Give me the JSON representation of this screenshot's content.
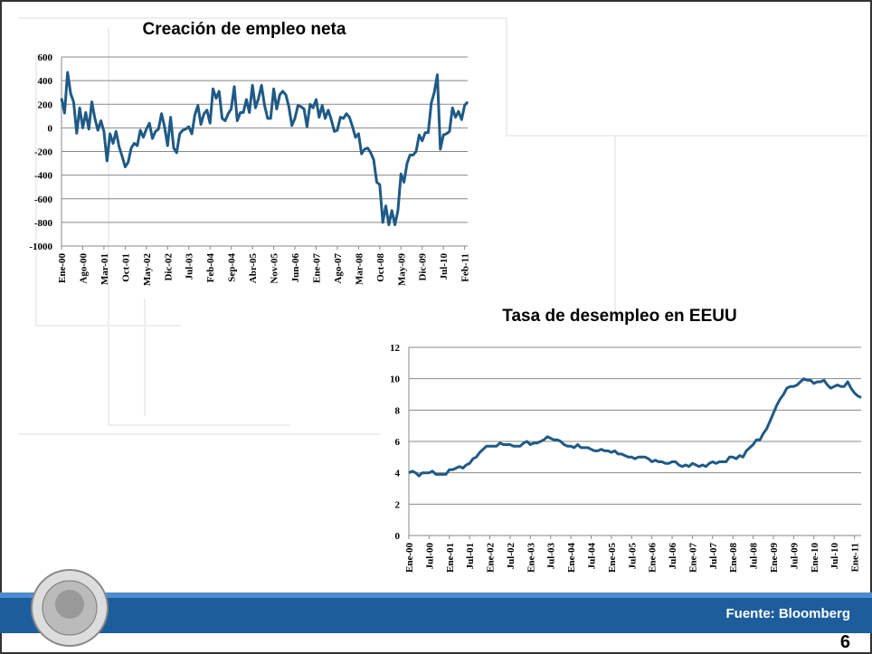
{
  "charts": [
    {
      "type": "line",
      "title": "Creación de empleo neta",
      "categories": [
        "Ene-00",
        null,
        null,
        null,
        null,
        null,
        null,
        "Ago-00",
        null,
        null,
        null,
        null,
        null,
        null,
        "Mar-01",
        null,
        null,
        null,
        null,
        null,
        null,
        "Oct-01",
        null,
        null,
        null,
        null,
        null,
        null,
        "May-02",
        null,
        null,
        null,
        null,
        null,
        null,
        "Dic-02",
        null,
        null,
        null,
        null,
        null,
        null,
        "Jul-03",
        null,
        null,
        null,
        null,
        null,
        null,
        "Feb-04",
        null,
        null,
        null,
        null,
        null,
        null,
        "Sep-04",
        null,
        null,
        null,
        null,
        null,
        null,
        "Abr-05",
        null,
        null,
        null,
        null,
        null,
        null,
        "Nov-05",
        null,
        null,
        null,
        null,
        null,
        null,
        "Jun-06",
        null,
        null,
        null,
        null,
        null,
        null,
        "Ene-07",
        null,
        null,
        null,
        null,
        null,
        null,
        "Ago-07",
        null,
        null,
        null,
        null,
        null,
        null,
        "Mar-08",
        null,
        null,
        null,
        null,
        null,
        null,
        "Oct-08",
        null,
        null,
        null,
        null,
        null,
        null,
        "May-09",
        null,
        null,
        null,
        null,
        null,
        null,
        "Dic-09",
        null,
        null,
        null,
        null,
        null,
        null,
        "Jul-10",
        null,
        null,
        null,
        null,
        null,
        null,
        "Feb-11",
        null
      ],
      "series": [
        {
          "color": "#1f5a85",
          "values": [
            250,
            125,
            470,
            290,
            220,
            -45,
            170,
            0,
            130,
            -10,
            220,
            80,
            -20,
            60,
            -30,
            -280,
            -50,
            -130,
            -30,
            -160,
            -240,
            -330,
            -290,
            -170,
            -130,
            -150,
            -20,
            -80,
            -10,
            40,
            -90,
            -30,
            -10,
            120,
            10,
            -150,
            90,
            -170,
            -210,
            -50,
            -20,
            -10,
            10,
            -50,
            110,
            190,
            30,
            120,
            150,
            40,
            330,
            250,
            310,
            80,
            60,
            120,
            160,
            350,
            60,
            130,
            130,
            240,
            130,
            360,
            170,
            250,
            360,
            190,
            80,
            80,
            330,
            160,
            280,
            310,
            280,
            180,
            20,
            80,
            190,
            180,
            160,
            10,
            200,
            170,
            240,
            90,
            190,
            80,
            150,
            70,
            -30,
            -20,
            90,
            80,
            120,
            90,
            10,
            -80,
            -50,
            -220,
            -180,
            -170,
            -210,
            -270,
            -460,
            -480,
            -800,
            -660,
            -820,
            -700,
            -820,
            -700,
            -390,
            -460,
            -300,
            -230,
            -230,
            -200,
            -60,
            -110,
            -40,
            -40,
            210,
            300,
            450,
            -180,
            -60,
            -50,
            -30,
            170,
            90,
            140,
            70,
            190,
            220
          ]
        }
      ],
      "ylim": [
        -1000,
        600
      ],
      "yticks": [
        -1000,
        -800,
        -600,
        -400,
        -200,
        0,
        200,
        400,
        600
      ],
      "grid": true
    },
    {
      "type": "line",
      "title": "Tasa de desempleo en EEUU",
      "categories": [
        "Ene-00",
        null,
        null,
        null,
        null,
        null,
        "Jul-00",
        null,
        null,
        null,
        null,
        null,
        "Ene-01",
        null,
        null,
        null,
        null,
        null,
        "Jul-01",
        null,
        null,
        null,
        null,
        null,
        "Ene-02",
        null,
        null,
        null,
        null,
        null,
        "Jul-02",
        null,
        null,
        null,
        null,
        null,
        "Ene-03",
        null,
        null,
        null,
        null,
        null,
        "Jul-03",
        null,
        null,
        null,
        null,
        null,
        "Ene-04",
        null,
        null,
        null,
        null,
        null,
        "Jul-04",
        null,
        null,
        null,
        null,
        null,
        "Ene-05",
        null,
        null,
        null,
        null,
        null,
        "Jul-05",
        null,
        null,
        null,
        null,
        null,
        "Ene-06",
        null,
        null,
        null,
        null,
        null,
        "Jul-06",
        null,
        null,
        null,
        null,
        null,
        "Ene-07",
        null,
        null,
        null,
        null,
        null,
        "Jul-07",
        null,
        null,
        null,
        null,
        null,
        "Ene-08",
        null,
        null,
        null,
        null,
        null,
        "Jul-08",
        null,
        null,
        null,
        null,
        null,
        "Ene-09",
        null,
        null,
        null,
        null,
        null,
        "Jul-09",
        null,
        null,
        null,
        null,
        null,
        "Ene-10",
        null,
        null,
        null,
        null,
        null,
        "Jul-10",
        null,
        null,
        null,
        null,
        null,
        "Ene-11",
        null,
        null
      ],
      "series": [
        {
          "color": "#1f5a85",
          "values": [
            4.0,
            4.1,
            4.0,
            3.8,
            4.0,
            4.0,
            4.0,
            4.1,
            3.9,
            3.9,
            3.9,
            3.9,
            4.2,
            4.2,
            4.3,
            4.4,
            4.3,
            4.5,
            4.6,
            4.9,
            5.0,
            5.3,
            5.5,
            5.7,
            5.7,
            5.7,
            5.7,
            5.9,
            5.8,
            5.8,
            5.8,
            5.7,
            5.7,
            5.7,
            5.9,
            6.0,
            5.8,
            5.9,
            5.9,
            6.0,
            6.1,
            6.3,
            6.2,
            6.1,
            6.1,
            6.0,
            5.8,
            5.7,
            5.7,
            5.6,
            5.8,
            5.6,
            5.6,
            5.6,
            5.5,
            5.4,
            5.4,
            5.5,
            5.4,
            5.4,
            5.3,
            5.4,
            5.2,
            5.2,
            5.1,
            5.0,
            5.0,
            4.9,
            5.0,
            5.0,
            5.0,
            4.9,
            4.7,
            4.8,
            4.7,
            4.7,
            4.6,
            4.6,
            4.7,
            4.7,
            4.5,
            4.4,
            4.5,
            4.4,
            4.6,
            4.5,
            4.4,
            4.5,
            4.4,
            4.6,
            4.7,
            4.6,
            4.7,
            4.7,
            4.7,
            5.0,
            5.0,
            4.9,
            5.1,
            5.0,
            5.4,
            5.6,
            5.8,
            6.1,
            6.1,
            6.5,
            6.8,
            7.3,
            7.8,
            8.3,
            8.7,
            9.0,
            9.4,
            9.5,
            9.5,
            9.6,
            9.8,
            10.0,
            9.9,
            9.9,
            9.7,
            9.8,
            9.8,
            9.9,
            9.6,
            9.4,
            9.5,
            9.6,
            9.5,
            9.5,
            9.8,
            9.4,
            9.1,
            8.9,
            8.8
          ]
        }
      ],
      "ylim": [
        0,
        12
      ],
      "yticks": [
        0,
        2,
        4,
        6,
        8,
        10,
        12
      ],
      "grid": true
    }
  ],
  "footer": {
    "source": "Fuente: Bloomberg",
    "page": "6"
  }
}
